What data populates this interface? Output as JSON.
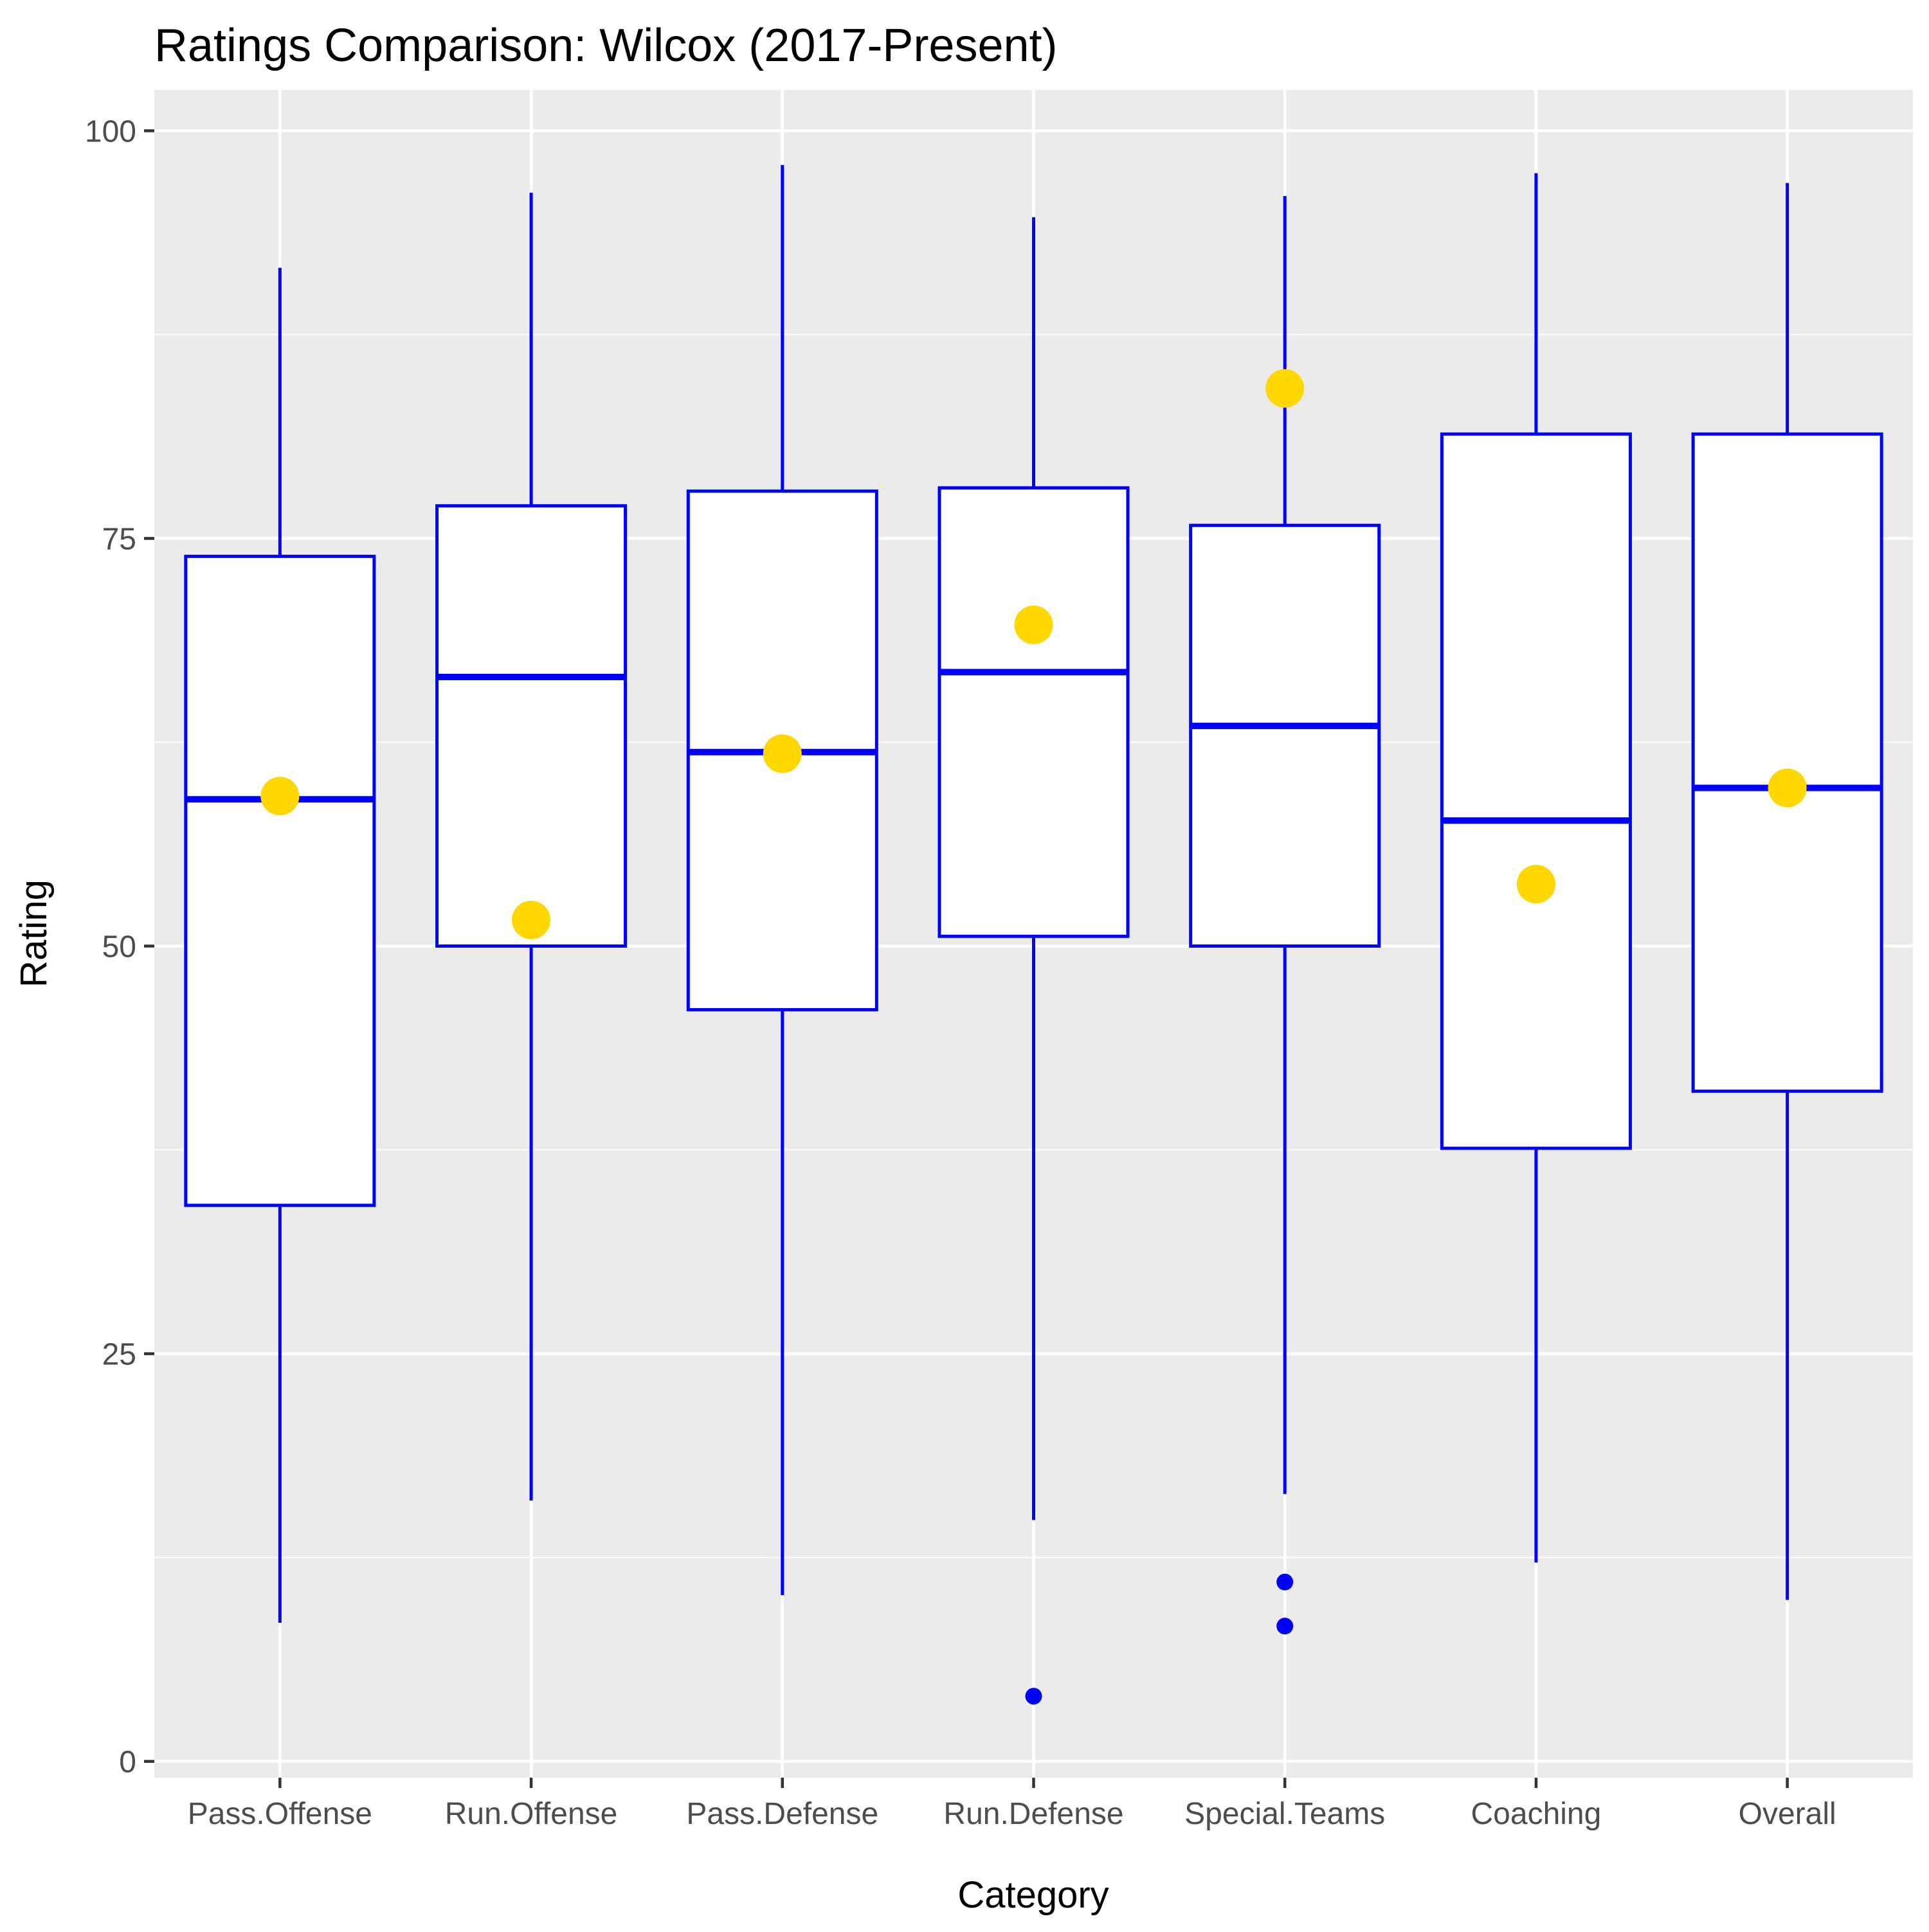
{
  "chart_data": {
    "type": "boxplot",
    "title": "Ratings Comparison: Wilcox (2017-Present)",
    "xlabel": "Category",
    "ylabel": "Rating",
    "ylim": [
      -1,
      102.5
    ],
    "yticks": [
      0,
      25,
      50,
      75,
      100
    ],
    "grid": true,
    "categories": [
      "Pass.Offense",
      "Run.Offense",
      "Pass.Defense",
      "Run.Defense",
      "Special.Teams",
      "Coaching",
      "Overall"
    ],
    "boxes": [
      {
        "category": "Pass.Offense",
        "whisker_low": 8.5,
        "q1": 34.1,
        "median": 59.0,
        "q3": 73.9,
        "whisker_high": 91.6,
        "outliers": []
      },
      {
        "category": "Run.Offense",
        "whisker_low": 16.0,
        "q1": 50.0,
        "median": 66.5,
        "q3": 77.0,
        "whisker_high": 96.2,
        "outliers": []
      },
      {
        "category": "Pass.Defense",
        "whisker_low": 10.2,
        "q1": 46.1,
        "median": 61.9,
        "q3": 77.9,
        "whisker_high": 97.9,
        "outliers": []
      },
      {
        "category": "Run.Defense",
        "whisker_low": 14.8,
        "q1": 50.6,
        "median": 66.8,
        "q3": 78.1,
        "whisker_high": 94.7,
        "outliers": [
          4.0
        ]
      },
      {
        "category": "Special.Teams",
        "whisker_low": 16.4,
        "q1": 50.0,
        "median": 63.5,
        "q3": 75.8,
        "whisker_high": 96.0,
        "outliers": [
          11.0,
          8.3
        ]
      },
      {
        "category": "Coaching",
        "whisker_low": 12.2,
        "q1": 37.6,
        "median": 57.7,
        "q3": 81.4,
        "whisker_high": 97.4,
        "outliers": []
      },
      {
        "category": "Overall",
        "whisker_low": 9.9,
        "q1": 41.1,
        "median": 59.7,
        "q3": 81.4,
        "whisker_high": 96.8,
        "outliers": []
      }
    ],
    "highlight": {
      "values": [
        59.2,
        51.6,
        61.8,
        69.7,
        84.2,
        53.8,
        59.7
      ],
      "color": "#FFD700"
    },
    "colors": {
      "box_stroke": "#0000FF",
      "box_fill": "#FFFFFF",
      "panel_bg": "#EBEBEB",
      "grid": "#FFFFFF",
      "highlight": "#FFD700"
    }
  }
}
